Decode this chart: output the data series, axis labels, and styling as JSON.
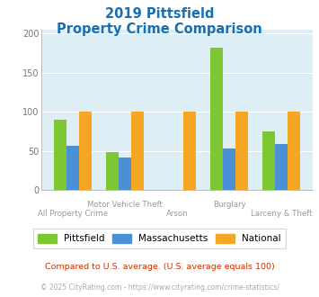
{
  "title_line1": "2019 Pittsfield",
  "title_line2": "Property Crime Comparison",
  "categories": [
    "All Property Crime",
    "Motor Vehicle Theft",
    "Arson",
    "Burglary",
    "Larceny & Theft"
  ],
  "pittsfield": [
    90,
    49,
    0,
    182,
    75
  ],
  "massachusetts": [
    57,
    42,
    0,
    53,
    59
  ],
  "national": [
    100,
    100,
    100,
    100,
    100
  ],
  "color_pittsfield": "#7dc832",
  "color_massachusetts": "#4b8fd4",
  "color_national": "#f5a623",
  "ylim": [
    0,
    205
  ],
  "yticks": [
    0,
    50,
    100,
    150,
    200
  ],
  "background_color": "#ddeef5",
  "title_color": "#1a6faf",
  "label_color": "#999999",
  "legend_label1": "Pittsfield",
  "legend_label2": "Massachusetts",
  "legend_label3": "National",
  "footnote1": "Compared to U.S. average. (U.S. average equals 100)",
  "footnote2": "© 2025 CityRating.com - https://www.cityrating.com/crime-statistics/",
  "footnote1_color": "#cc3300",
  "footnote2_color": "#aaaaaa",
  "top_row_labels": [
    "Motor Vehicle Theft",
    "Burglary"
  ],
  "bottom_row_labels": [
    "All Property Crime",
    "Arson",
    "Larceny & Theft"
  ]
}
